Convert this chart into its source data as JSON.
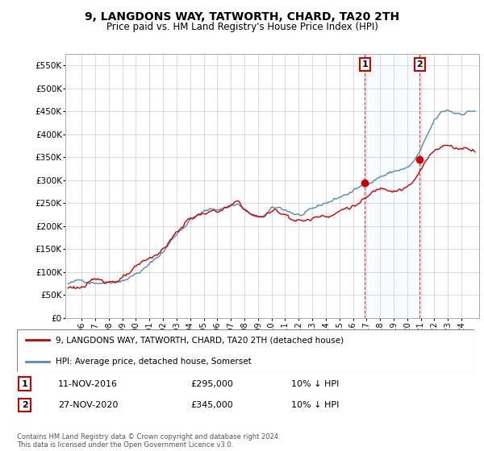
{
  "title": "9, LANGDONS WAY, TATWORTH, CHARD, TA20 2TH",
  "subtitle": "Price paid vs. HM Land Registry's House Price Index (HPI)",
  "ylabel_ticks": [
    "£0",
    "£50K",
    "£100K",
    "£150K",
    "£200K",
    "£250K",
    "£300K",
    "£350K",
    "£400K",
    "£450K",
    "£500K",
    "£550K"
  ],
  "ytick_vals": [
    0,
    50000,
    100000,
    150000,
    200000,
    250000,
    300000,
    350000,
    400000,
    450000,
    500000,
    550000
  ],
  "ylim": [
    0,
    575000
  ],
  "hpi_color": "#5588bb",
  "price_color": "#cc0000",
  "sale1_date": 2016.87,
  "sale1_price": 295000,
  "sale2_date": 2020.91,
  "sale2_price": 345000,
  "shade_color": "#ddeeff",
  "footnote": "Contains HM Land Registry data © Crown copyright and database right 2024.\nThis data is licensed under the Open Government Licence v3.0.",
  "legend1": "9, LANGDONS WAY, TATWORTH, CHARD, TA20 2TH (detached house)",
  "legend2": "HPI: Average price, detached house, Somerset",
  "table_row1": [
    "1",
    "11-NOV-2016",
    "£295,000",
    "10% ↓ HPI"
  ],
  "table_row2": [
    "2",
    "27-NOV-2020",
    "£345,000",
    "10% ↓ HPI"
  ],
  "xtick_years": [
    1996,
    1997,
    1998,
    1999,
    2000,
    2001,
    2002,
    2003,
    2004,
    2005,
    2006,
    2007,
    2008,
    2009,
    2010,
    2011,
    2012,
    2013,
    2014,
    2015,
    2016,
    2017,
    2018,
    2019,
    2020,
    2021,
    2022,
    2023,
    2024
  ]
}
